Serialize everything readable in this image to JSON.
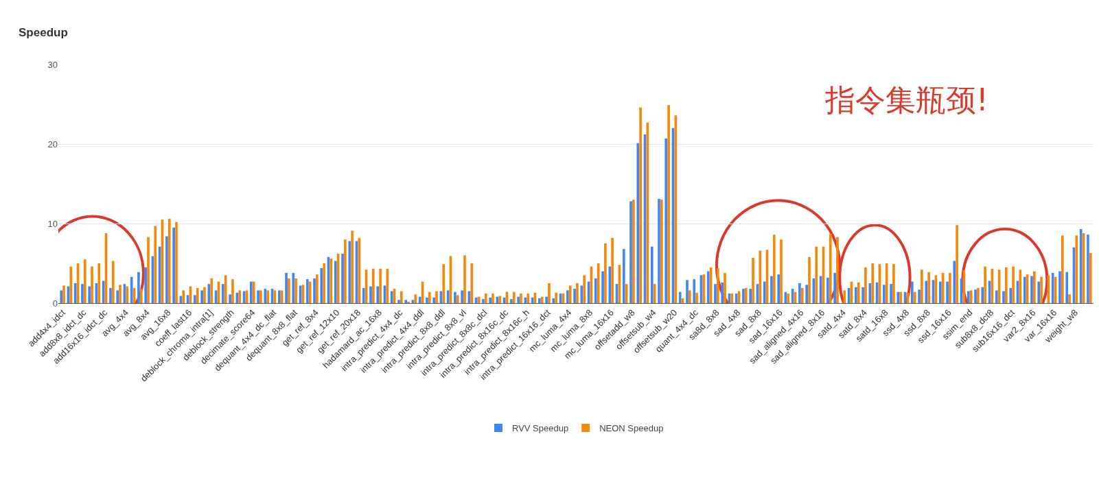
{
  "chart_data": {
    "type": "bar",
    "ylabel": "Speedup",
    "categories": [
      "add4x4_idct",
      null,
      null,
      "add8x8_idct_dc",
      null,
      null,
      "add16x16_idct_dc",
      null,
      null,
      "avg_4x4",
      null,
      null,
      "avg_8x4",
      null,
      null,
      "avg_16x8",
      null,
      null,
      "coeff_last16",
      null,
      null,
      "deblock_chroma_intra[1]",
      null,
      null,
      "deblock_strength",
      null,
      null,
      "decimate_score64",
      null,
      null,
      "dequant_4x4_dc_flat",
      null,
      null,
      "dequant_8x8_flat",
      null,
      null,
      "get_ref_8x4",
      null,
      null,
      "get_ref_12x10",
      null,
      null,
      "get_ref_20x18",
      null,
      null,
      "hadamard_ac_16x8",
      null,
      null,
      "intra_predict_4x4_dc",
      null,
      null,
      "intra_predict_4x4_ddl",
      null,
      null,
      "intra_predict_8x8_ddl",
      null,
      null,
      "intra_predict_8x8_vl",
      null,
      null,
      "intra_predict_8x8c_dcl",
      null,
      null,
      "intra_predict_8x16c_dc",
      null,
      null,
      "intra_predict_8x16c_h",
      null,
      null,
      "intra_predict_16x16_dct",
      null,
      null,
      "mc_luma_4x4",
      null,
      null,
      "mc_luma_8x8",
      null,
      null,
      "mc_luma_16x16",
      null,
      null,
      "offsetadd_w8",
      null,
      null,
      "offsetsub_w4",
      null,
      null,
      "offsetsub_w20",
      null,
      null,
      "quant_4x4_dc",
      null,
      null,
      "sa8d_8x8",
      null,
      null,
      "sad_4x8",
      null,
      null,
      "sad_8x8",
      null,
      null,
      "sad_16x16",
      null,
      null,
      "sad_aligned_4x16",
      null,
      null,
      "sad_aligned_8x16",
      null,
      null,
      "satd_4x4",
      null,
      null,
      "satd_8x4",
      null,
      null,
      "satd_16x8",
      null,
      null,
      "ssd_4x8",
      null,
      null,
      "ssd_8x8",
      null,
      null,
      "ssd_16x16",
      null,
      null,
      "ssim_end",
      null,
      null,
      "sub8x8_dct8",
      null,
      null,
      "sub16x16_dct",
      null,
      null,
      "var2_8x16",
      null,
      null,
      "var_16x16",
      null,
      null,
      "weight_w8",
      null,
      null
    ],
    "series": [
      {
        "name": "RVV Speedup",
        "color": "#4285f4",
        "values": [
          1.6,
          2.1,
          2.5,
          2.4,
          2.1,
          2.5,
          2.8,
          1.9,
          1.6,
          2.4,
          3.3,
          3.9,
          4.5,
          5.9,
          7.1,
          8.4,
          9.5,
          0.9,
          1.0,
          1.0,
          1.6,
          2.4,
          1.6,
          2.4,
          1.1,
          1.3,
          1.5,
          2.7,
          1.6,
          1.8,
          1.8,
          1.6,
          3.8,
          3.8,
          2.2,
          3.0,
          3.1,
          4.4,
          5.8,
          5.3,
          6.2,
          7.8,
          7.8,
          1.9,
          2.1,
          2.1,
          2.2,
          1.5,
          0.4,
          0.4,
          0.4,
          0.8,
          0.7,
          0.7,
          1.5,
          1.6,
          1.4,
          1.6,
          1.5,
          0.7,
          0.5,
          0.7,
          0.8,
          0.7,
          0.5,
          0.8,
          0.7,
          0.7,
          0.6,
          0.8,
          0.6,
          1.2,
          1.6,
          1.8,
          2.2,
          2.7,
          3.1,
          4.0,
          4.6,
          2.4,
          6.8,
          12.8,
          20.1,
          21.2,
          7.1,
          13.1,
          20.7,
          22.0,
          1.4,
          2.9,
          3.0,
          3.5,
          4.0,
          2.4,
          2.6,
          1.2,
          1.2,
          1.8,
          1.8,
          2.4,
          2.7,
          3.4,
          3.6,
          1.4,
          1.8,
          2.5,
          2.3,
          3.1,
          3.4,
          3.2,
          3.8,
          null,
          1.9,
          2.0,
          2.0,
          2.5,
          2.6,
          2.3,
          2.4,
          1.4,
          1.4,
          2.7,
          1.7,
          2.8,
          2.9,
          2.7,
          2.7,
          5.3,
          3.1,
          1.5,
          1.7,
          2.0,
          2.8,
          1.6,
          1.5,
          1.9,
          2.8,
          3.3,
          3.4,
          2.7,
          null,
          3.8,
          4.0,
          3.9,
          7.0,
          9.3,
          8.6
        ]
      },
      {
        "name": "NEON Speedup",
        "color": "#f5870a",
        "values": [
          2.2,
          4.6,
          5.0,
          5.5,
          4.6,
          5.0,
          8.8,
          5.3,
          2.3,
          2.1,
          1.9,
          1.8,
          8.3,
          9.7,
          10.5,
          10.6,
          10.2,
          1.6,
          2.1,
          1.9,
          2.0,
          3.1,
          2.7,
          3.5,
          3.0,
          1.6,
          1.6,
          2.7,
          1.6,
          1.6,
          1.6,
          1.6,
          3.1,
          3.1,
          2.3,
          2.7,
          3.6,
          5.0,
          5.6,
          6.2,
          8.0,
          9.1,
          8.2,
          4.2,
          4.3,
          4.3,
          4.3,
          1.8,
          1.5,
          0.1,
          1.1,
          2.7,
          1.4,
          1.5,
          4.9,
          5.9,
          1.0,
          6.0,
          5.0,
          0.8,
          1.2,
          1.2,
          0.9,
          1.4,
          1.4,
          1.2,
          1.2,
          1.3,
          0.8,
          2.5,
          1.3,
          1.2,
          2.2,
          2.5,
          3.5,
          4.6,
          5.0,
          7.5,
          8.2,
          4.8,
          2.4,
          13.0,
          24.6,
          22.7,
          2.4,
          13.0,
          24.9,
          23.6,
          0.6,
          1.6,
          1.3,
          3.6,
          4.5,
          4.4,
          3.8,
          1.2,
          1.5,
          1.9,
          5.7,
          6.6,
          6.7,
          8.6,
          8.0,
          1.2,
          1.4,
          1.9,
          5.8,
          7.1,
          7.1,
          8.7,
          8.3,
          1.6,
          2.7,
          2.6,
          4.5,
          5.0,
          4.9,
          5.0,
          4.9,
          1.4,
          1.3,
          1.4,
          4.2,
          3.9,
          3.5,
          3.8,
          3.8,
          9.8,
          4.1,
          1.6,
          1.9,
          4.6,
          4.3,
          4.2,
          4.5,
          4.6,
          4.2,
          3.6,
          4.0,
          3.3,
          3.5,
          3.3,
          8.5,
          1.1,
          8.5,
          8.8,
          6.3
        ]
      }
    ],
    "ylim": [
      0,
      30
    ],
    "yticks": [
      0,
      10,
      20,
      30
    ],
    "grid": "y",
    "legend": "bottom",
    "annotations": [
      "指令集瓶颈!"
    ]
  }
}
